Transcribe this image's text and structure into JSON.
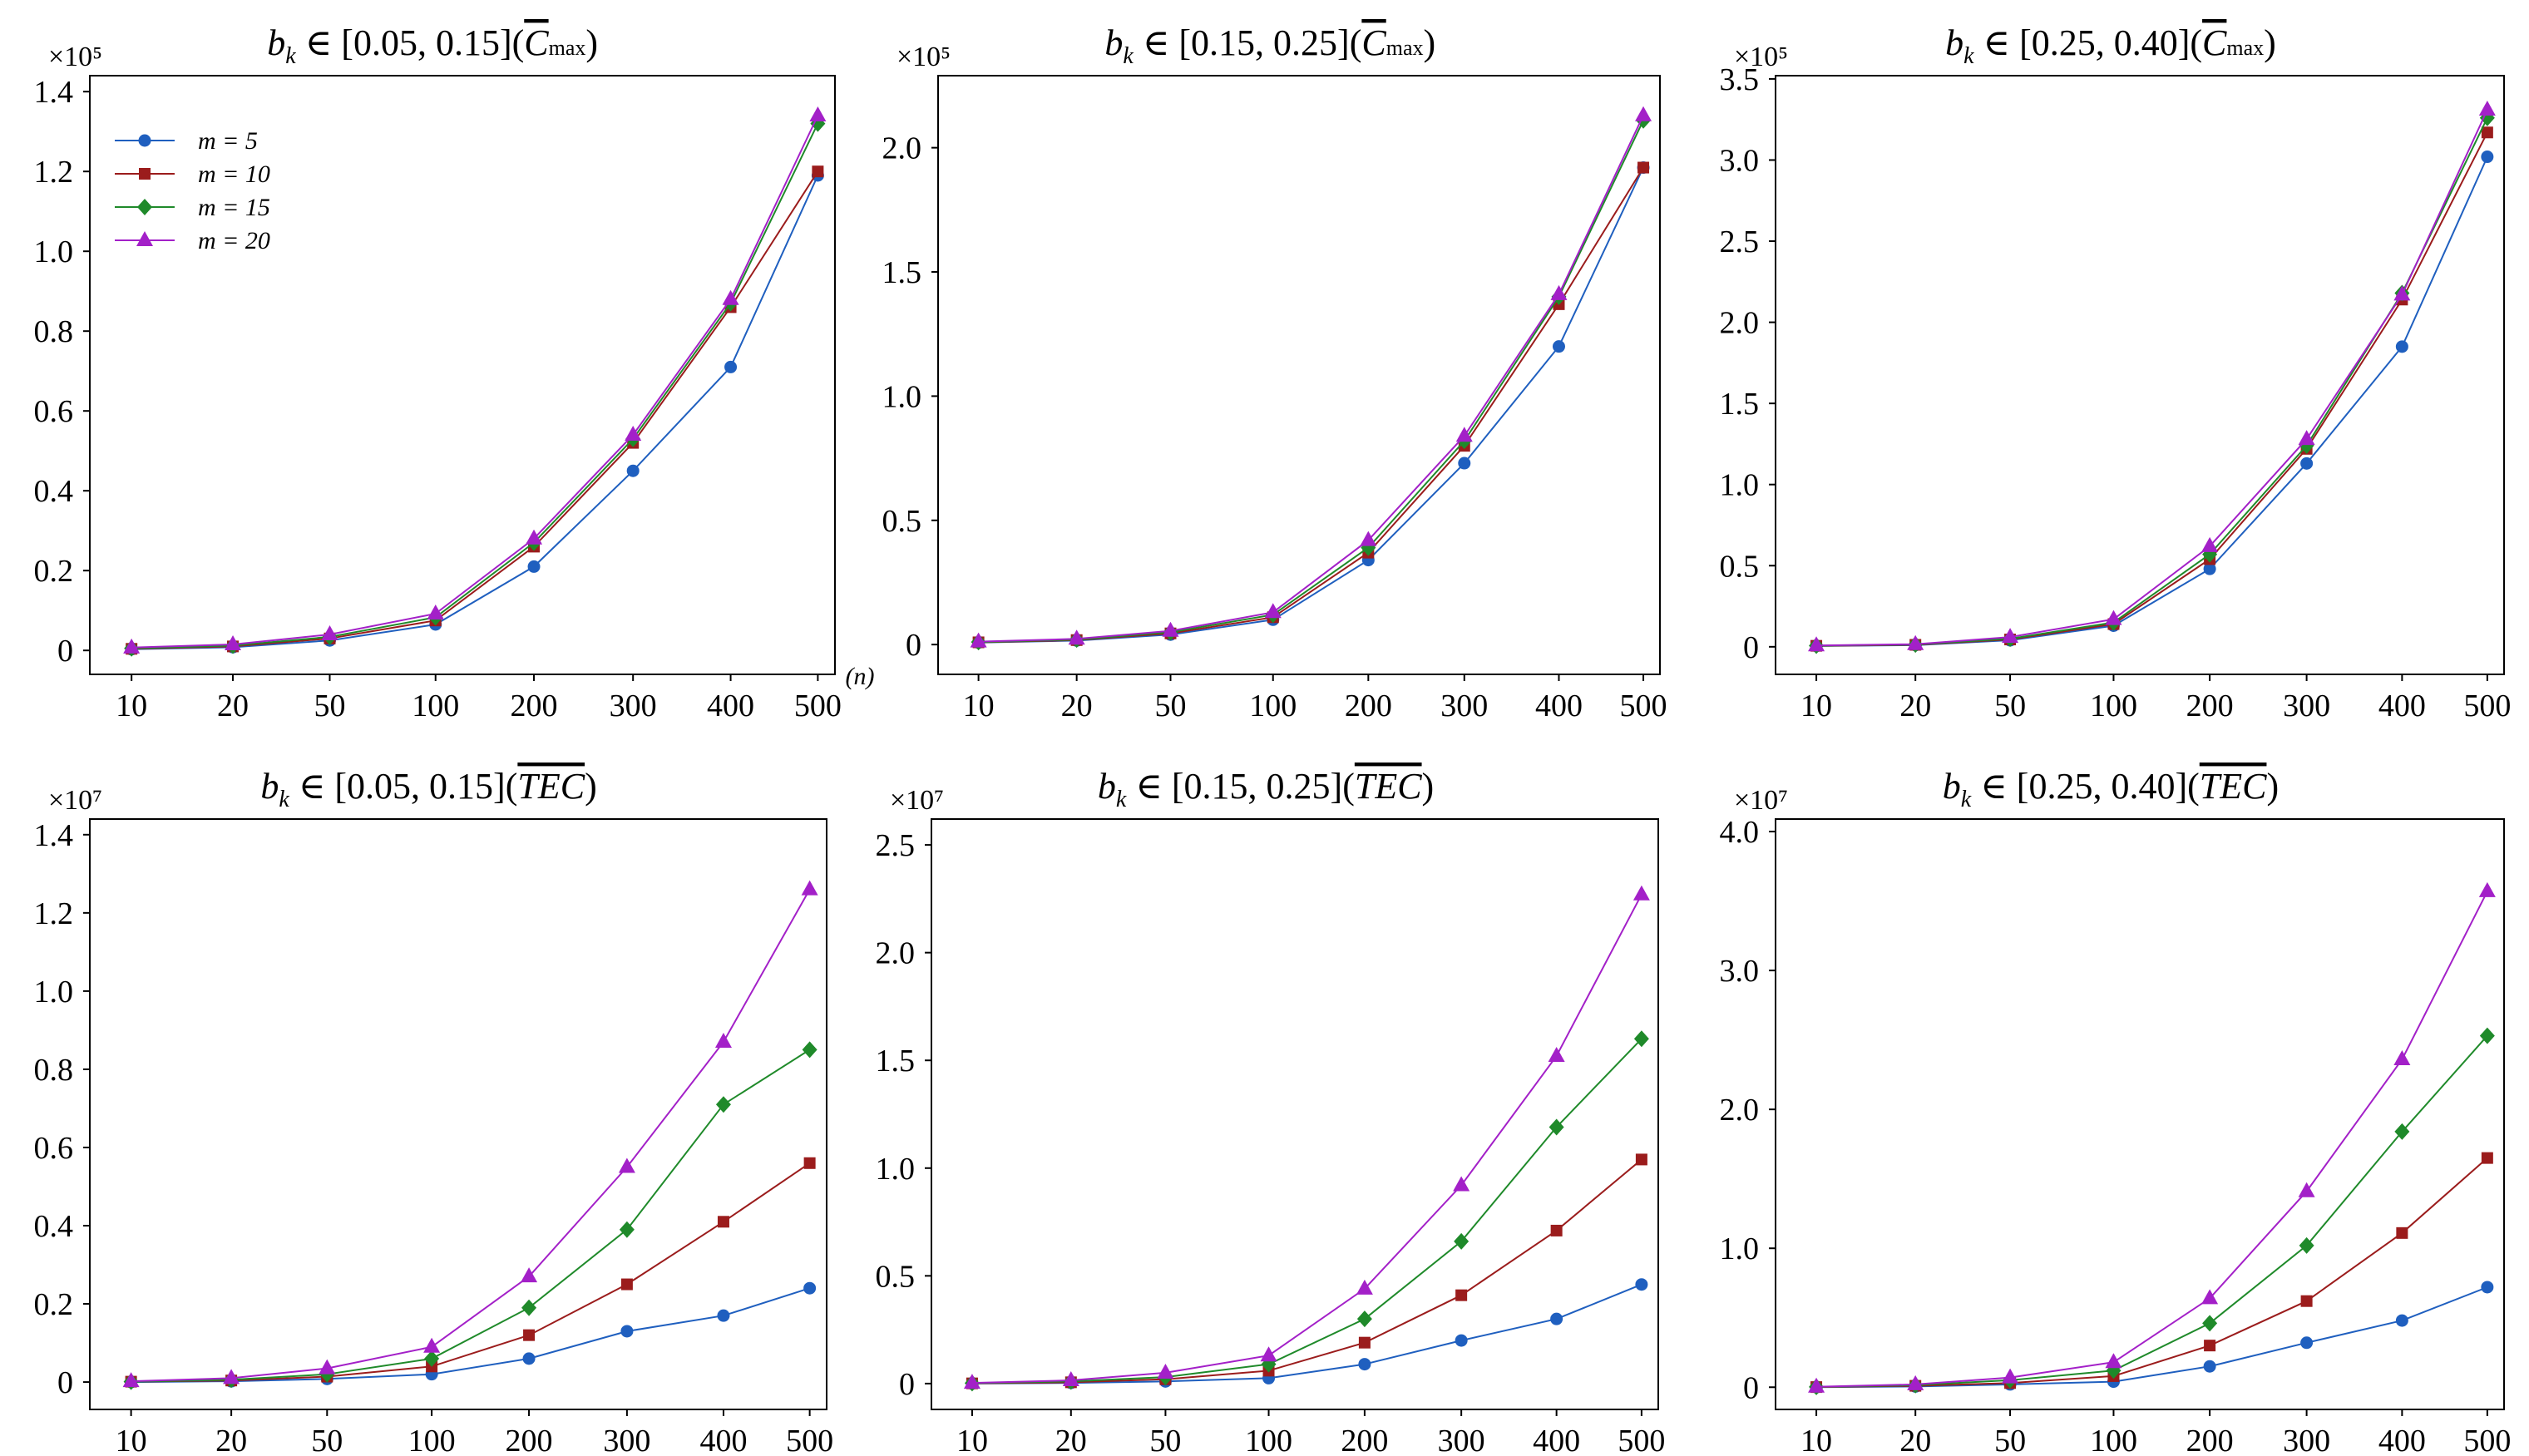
{
  "figure": {
    "x_unit_label": "(n)",
    "legend": {
      "placement": "top-left of first panel",
      "entries": [
        "m = 5",
        "m = 10",
        "m = 15",
        "m = 20"
      ]
    },
    "series_colors": {
      "m = 5": "#1f5fbf",
      "m = 10": "#9b1c1c",
      "m = 15": "#1f8a2a",
      "m = 20": "#a320c8"
    },
    "series_markers": {
      "m = 5": "circle",
      "m = 10": "square",
      "m = 15": "diamond",
      "m = 20": "triangle-up"
    }
  },
  "chart_data": [
    {
      "type": "line",
      "title": "b_k ∈ [0.05, 0.15] (C̄max)",
      "title_parts": {
        "var": "b",
        "sub": "k",
        "range": "[0.05, 0.15]",
        "metric": "C",
        "metric_sub": "max"
      },
      "scale_label": "×10⁵",
      "categories": [
        "10",
        "20",
        "50",
        "100",
        "200",
        "300",
        "400",
        "500"
      ],
      "ylim": [
        -0.06,
        1.44
      ],
      "yticks": [
        0,
        0.2,
        0.4,
        0.6,
        0.8,
        1.0,
        1.2,
        1.4
      ],
      "ytick_labels": [
        "0",
        "0.2",
        "0.4",
        "0.6",
        "0.8",
        "1.0",
        "1.2",
        "1.4"
      ],
      "series": [
        {
          "name": "m = 5",
          "values": [
            0.003,
            0.008,
            0.025,
            0.065,
            0.21,
            0.45,
            0.71,
            1.19
          ]
        },
        {
          "name": "m = 10",
          "values": [
            0.004,
            0.01,
            0.03,
            0.075,
            0.26,
            0.52,
            0.86,
            1.2
          ]
        },
        {
          "name": "m = 15",
          "values": [
            0.005,
            0.012,
            0.034,
            0.083,
            0.27,
            0.53,
            0.87,
            1.32
          ]
        },
        {
          "name": "m = 20",
          "values": [
            0.007,
            0.015,
            0.04,
            0.092,
            0.28,
            0.54,
            0.88,
            1.34
          ]
        }
      ]
    },
    {
      "type": "line",
      "title": "b_k ∈ [0.15, 0.25] (C̄max)",
      "title_parts": {
        "var": "b",
        "sub": "k",
        "range": "[0.15, 0.25]",
        "metric": "C",
        "metric_sub": "max"
      },
      "scale_label": "×10⁵",
      "categories": [
        "10",
        "20",
        "50",
        "100",
        "200",
        "300",
        "400",
        "500"
      ],
      "ylim": [
        -0.12,
        2.29
      ],
      "yticks": [
        0,
        0.5,
        1.0,
        1.5,
        2.0
      ],
      "ytick_labels": [
        "0",
        "0.5",
        "1.0",
        "1.5",
        "2.0"
      ],
      "series": [
        {
          "name": "m = 5",
          "values": [
            0.008,
            0.016,
            0.04,
            0.1,
            0.34,
            0.73,
            1.2,
            1.92
          ]
        },
        {
          "name": "m = 10",
          "values": [
            0.009,
            0.018,
            0.045,
            0.11,
            0.37,
            0.8,
            1.37,
            1.92
          ]
        },
        {
          "name": "m = 15",
          "values": [
            0.01,
            0.02,
            0.05,
            0.12,
            0.39,
            0.82,
            1.4,
            2.11
          ]
        },
        {
          "name": "m = 20",
          "values": [
            0.012,
            0.023,
            0.055,
            0.13,
            0.42,
            0.84,
            1.41,
            2.13
          ]
        }
      ]
    },
    {
      "type": "line",
      "title": "b_k ∈ [0.25, 0.40] (C̄max)",
      "title_parts": {
        "var": "b",
        "sub": "k",
        "range": "[0.25, 0.40]",
        "metric": "C",
        "metric_sub": "max"
      },
      "scale_label": "×10⁵",
      "categories": [
        "10",
        "20",
        "50",
        "100",
        "200",
        "300",
        "400",
        "500"
      ],
      "ylim": [
        -0.17,
        3.52
      ],
      "yticks": [
        0,
        0.5,
        1.0,
        1.5,
        2.0,
        2.5,
        3.0,
        3.5
      ],
      "ytick_labels": [
        "0",
        "0.5",
        "1.0",
        "1.5",
        "2.0",
        "2.5",
        "3.0",
        "3.5"
      ],
      "series": [
        {
          "name": "m = 5",
          "values": [
            0.005,
            0.01,
            0.04,
            0.13,
            0.48,
            1.13,
            1.85,
            3.02
          ]
        },
        {
          "name": "m = 10",
          "values": [
            0.006,
            0.012,
            0.045,
            0.14,
            0.54,
            1.22,
            2.14,
            3.17
          ]
        },
        {
          "name": "m = 15",
          "values": [
            0.007,
            0.014,
            0.05,
            0.15,
            0.57,
            1.24,
            2.18,
            3.26
          ]
        },
        {
          "name": "m = 20",
          "values": [
            0.008,
            0.016,
            0.06,
            0.17,
            0.62,
            1.28,
            2.17,
            3.31
          ]
        }
      ]
    },
    {
      "type": "line",
      "title": "b_k ∈ [0.05, 0.15] (TEC)",
      "title_parts": {
        "var": "b",
        "sub": "k",
        "range": "[0.05, 0.15]",
        "metric": "TEC",
        "metric_sub": ""
      },
      "scale_label": "×10⁷",
      "categories": [
        "10",
        "20",
        "50",
        "100",
        "200",
        "300",
        "400",
        "500"
      ],
      "ylim": [
        -0.07,
        1.44
      ],
      "yticks": [
        0,
        0.2,
        0.4,
        0.6,
        0.8,
        1.0,
        1.2,
        1.4
      ],
      "ytick_labels": [
        "0",
        "0.2",
        "0.4",
        "0.6",
        "0.8",
        "1.0",
        "1.2",
        "1.4"
      ],
      "series": [
        {
          "name": "m = 5",
          "values": [
            0.0,
            0.002,
            0.008,
            0.02,
            0.06,
            0.13,
            0.17,
            0.24
          ]
        },
        {
          "name": "m = 10",
          "values": [
            0.001,
            0.004,
            0.014,
            0.04,
            0.12,
            0.25,
            0.41,
            0.56
          ]
        },
        {
          "name": "m = 15",
          "values": [
            0.001,
            0.006,
            0.02,
            0.06,
            0.19,
            0.39,
            0.71,
            0.85
          ]
        },
        {
          "name": "m = 20",
          "values": [
            0.002,
            0.01,
            0.035,
            0.09,
            0.27,
            0.55,
            0.87,
            1.26
          ]
        }
      ]
    },
    {
      "type": "line",
      "title": "b_k ∈ [0.15, 0.25] (TEC)",
      "title_parts": {
        "var": "b",
        "sub": "k",
        "range": "[0.15, 0.25]",
        "metric": "TEC",
        "metric_sub": ""
      },
      "scale_label": "×10⁷",
      "categories": [
        "10",
        "20",
        "50",
        "100",
        "200",
        "300",
        "400",
        "500"
      ],
      "ylim": [
        -0.12,
        2.62
      ],
      "yticks": [
        0,
        0.5,
        1.0,
        1.5,
        2.0,
        2.5
      ],
      "ytick_labels": [
        "0",
        "0.5",
        "1.0",
        "1.5",
        "2.0",
        "2.5"
      ],
      "series": [
        {
          "name": "m = 5",
          "values": [
            0.0,
            0.003,
            0.01,
            0.025,
            0.09,
            0.2,
            0.3,
            0.46
          ]
        },
        {
          "name": "m = 10",
          "values": [
            0.001,
            0.006,
            0.02,
            0.06,
            0.19,
            0.41,
            0.71,
            1.04
          ]
        },
        {
          "name": "m = 15",
          "values": [
            0.002,
            0.01,
            0.03,
            0.09,
            0.3,
            0.66,
            1.19,
            1.6
          ]
        },
        {
          "name": "m = 20",
          "values": [
            0.003,
            0.015,
            0.05,
            0.13,
            0.44,
            0.92,
            1.52,
            2.27
          ]
        }
      ]
    },
    {
      "type": "line",
      "title": "b_k ∈ [0.25, 0.40] (TEC)",
      "title_parts": {
        "var": "b",
        "sub": "k",
        "range": "[0.25, 0.40]",
        "metric": "TEC",
        "metric_sub": ""
      },
      "scale_label": "×10⁷",
      "categories": [
        "10",
        "20",
        "50",
        "100",
        "200",
        "300",
        "400",
        "500"
      ],
      "ylim": [
        -0.16,
        4.09
      ],
      "yticks": [
        0,
        1.0,
        2.0,
        3.0,
        4.0
      ],
      "ytick_labels": [
        "0",
        "1.0",
        "2.0",
        "3.0",
        "4.0"
      ],
      "series": [
        {
          "name": "m = 5",
          "values": [
            0.0,
            0.005,
            0.02,
            0.04,
            0.15,
            0.32,
            0.48,
            0.72
          ]
        },
        {
          "name": "m = 10",
          "values": [
            0.001,
            0.01,
            0.03,
            0.08,
            0.3,
            0.62,
            1.11,
            1.65
          ]
        },
        {
          "name": "m = 15",
          "values": [
            0.002,
            0.015,
            0.05,
            0.12,
            0.46,
            1.02,
            1.84,
            2.53
          ]
        },
        {
          "name": "m = 20",
          "values": [
            0.003,
            0.02,
            0.07,
            0.18,
            0.64,
            1.41,
            2.36,
            3.57
          ]
        }
      ]
    }
  ]
}
